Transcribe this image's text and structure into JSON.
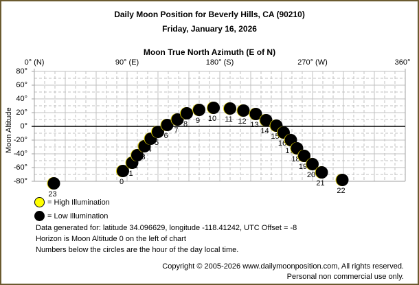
{
  "header": {
    "title": "Daily Moon Position for Beverly Hills, CA (90210)",
    "date": "Friday, January 16, 2026",
    "x_axis_title": "Moon True North Azimuth (E of N)"
  },
  "axes": {
    "x_ticks": [
      "0° (N)",
      "90° (E)",
      "180° (S)",
      "270° (W)",
      "360°"
    ],
    "y_ticks": [
      "80°",
      "60°",
      "40°",
      "20°",
      "0°",
      "-20°",
      "-40°",
      "-60°",
      "-80°"
    ],
    "y_label": "Moon Altitude"
  },
  "legend": {
    "high": "= High Illumination",
    "low": "= Low Illumination",
    "high_color": "#ffff00",
    "low_color": "#000000"
  },
  "notes": {
    "line1": "Data generated for: latitude 34.096629, longitude -118.41242, UTC Offset = -8",
    "line2": "Horizon is Moon Altitude 0 on the left of chart",
    "line3": "Numbers below the circles are the hour of the day local time."
  },
  "footer": {
    "copyright": "Copyright © 2005-2026 www.dailymoonposition.com, All rights reserved.",
    "usage": "Personal non commercial use only."
  },
  "chart_data": {
    "type": "scatter",
    "title": "Daily Moon Position for Beverly Hills, CA (90210)",
    "subtitle": "Friday, January 16, 2026",
    "xlabel": "Moon True North Azimuth (E of N)",
    "ylabel": "Moon Altitude",
    "xlim": [
      0,
      360
    ],
    "ylim": [
      -80,
      80
    ],
    "x_tick_labels": [
      "0° (N)",
      "90° (E)",
      "180° (S)",
      "270° (W)",
      "360°"
    ],
    "y_tick_labels": [
      "80°",
      "60°",
      "40°",
      "20°",
      "0°",
      "-20°",
      "-40°",
      "-60°",
      "-80°"
    ],
    "grid": true,
    "horizon_line": 0,
    "legend": [
      "High Illumination",
      "Low Illumination"
    ],
    "series": [
      {
        "name": "Low Illumination",
        "points": [
          {
            "hour": "0",
            "azimuth": 86,
            "altitude": -65
          },
          {
            "hour": "1",
            "azimuth": 95,
            "altitude": -53
          },
          {
            "hour": "2",
            "azimuth": 100,
            "altitude": -42
          },
          {
            "hour": "3",
            "azimuth": 107,
            "altitude": -29
          },
          {
            "hour": "4",
            "azimuth": 113,
            "altitude": -18
          },
          {
            "hour": "5",
            "azimuth": 120,
            "altitude": -8
          },
          {
            "hour": "6",
            "azimuth": 129,
            "altitude": 2
          },
          {
            "hour": "7",
            "azimuth": 139,
            "altitude": 10
          },
          {
            "hour": "8",
            "azimuth": 148,
            "altitude": 19
          },
          {
            "hour": "9",
            "azimuth": 160,
            "altitude": 24
          },
          {
            "hour": "10",
            "azimuth": 174,
            "altitude": 27
          },
          {
            "hour": "11",
            "azimuth": 190,
            "altitude": 26
          },
          {
            "hour": "12",
            "azimuth": 203,
            "altitude": 23
          },
          {
            "hour": "13",
            "azimuth": 215,
            "altitude": 18
          },
          {
            "hour": "14",
            "azimuth": 225,
            "altitude": 9
          },
          {
            "hour": "15",
            "azimuth": 235,
            "altitude": 1
          },
          {
            "hour": "16",
            "azimuth": 242,
            "altitude": -9
          },
          {
            "hour": "17",
            "azimuth": 249,
            "altitude": -20
          },
          {
            "hour": "18",
            "azimuth": 255,
            "altitude": -32
          },
          {
            "hour": "19",
            "azimuth": 262,
            "altitude": -43
          },
          {
            "hour": "20",
            "azimuth": 270,
            "altitude": -55
          },
          {
            "hour": "21",
            "azimuth": 279,
            "altitude": -67
          },
          {
            "hour": "22",
            "azimuth": 299,
            "altitude": -78
          },
          {
            "hour": "23",
            "azimuth": 19,
            "altitude": -83
          }
        ]
      }
    ]
  }
}
